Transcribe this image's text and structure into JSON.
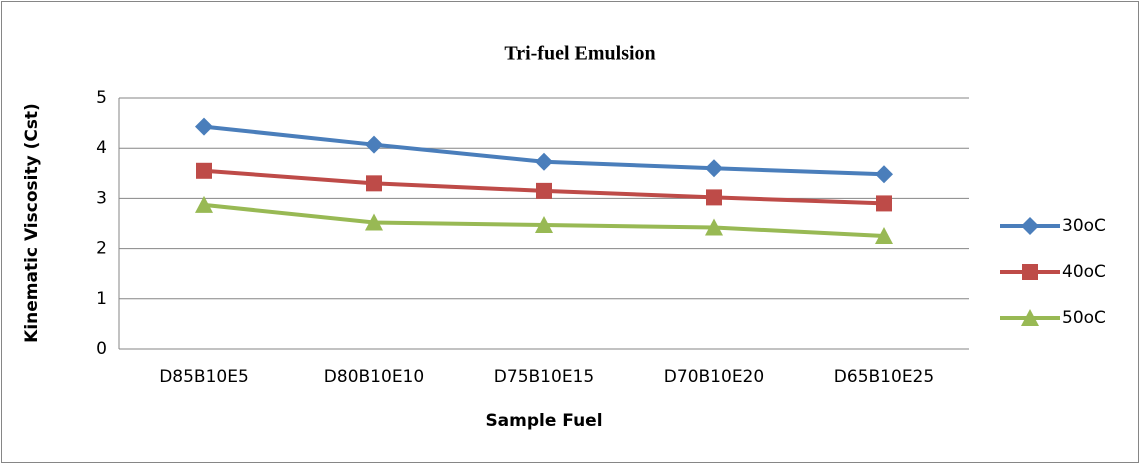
{
  "chart_data": {
    "type": "line",
    "title": "Tri-fuel Emulsion",
    "x_label": "Sample Fuel",
    "y_label": "Kinematic Viscosity (Cst)",
    "categories": [
      "D85B10E5",
      "D80B10E10",
      "D75B10E15",
      "D70B10E20",
      "D65B10E25"
    ],
    "series": [
      {
        "name": "30oC",
        "color": "#4a7ebb",
        "marker": "diamond",
        "values": [
          4.43,
          4.07,
          3.73,
          3.6,
          3.48
        ]
      },
      {
        "name": "40oC",
        "color": "#be4b48",
        "marker": "square",
        "values": [
          3.55,
          3.3,
          3.15,
          3.02,
          2.9
        ]
      },
      {
        "name": "50oC",
        "color": "#98b954",
        "marker": "triangle",
        "values": [
          2.87,
          2.52,
          2.47,
          2.42,
          2.25
        ]
      }
    ],
    "ylim": [
      0,
      5
    ],
    "yticks": [
      0,
      1,
      2,
      3,
      4,
      5
    ],
    "grid": true,
    "legend": "right"
  }
}
